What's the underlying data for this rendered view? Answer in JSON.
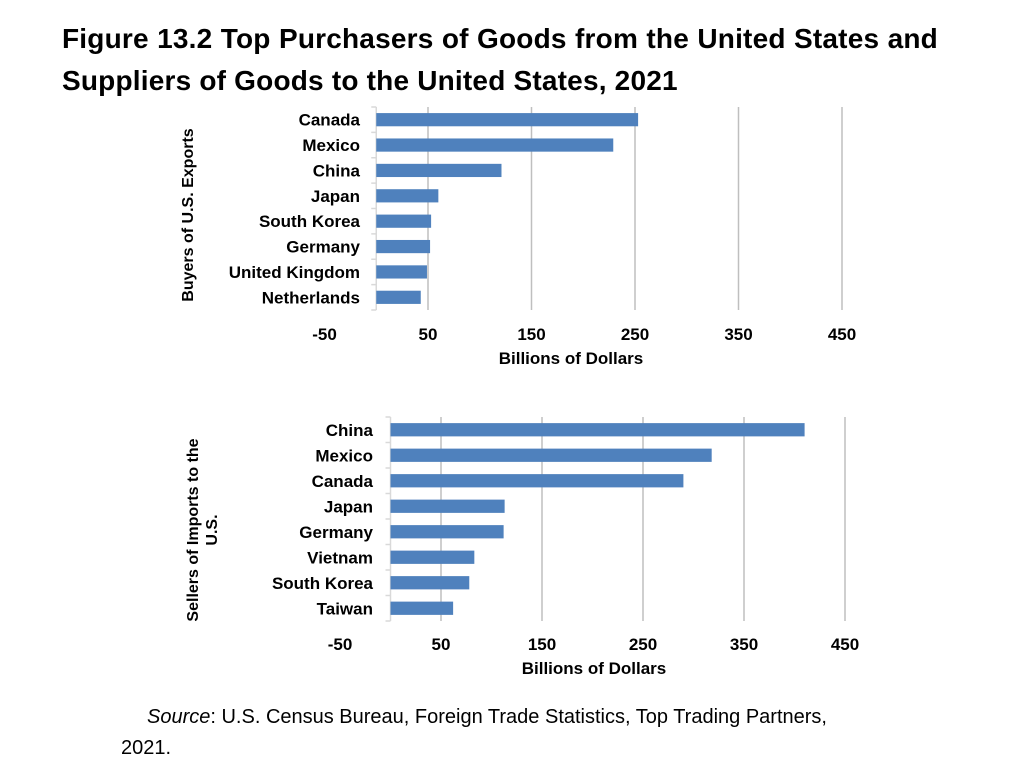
{
  "title": "Figure 13.2 Top Purchasers of Goods from the United States and Suppliers of Goods to the United States, 2021",
  "source": {
    "label": "Source",
    "text": ": U.S. Census Bureau, Foreign Trade Statistics, Top Trading Partners, 2021."
  },
  "colors": {
    "bar": "#4f81bd",
    "grid": "#bfbfbf",
    "axis": "#d9d9d9"
  },
  "chart_data": [
    {
      "type": "bar",
      "orientation": "horizontal",
      "ylabel": "Buyers of U.S. Exports",
      "xlabel": "Billions of Dollars",
      "categories": [
        "Canada",
        "Mexico",
        "China",
        "Japan",
        "South Korea",
        "Germany",
        "United Kingdom",
        "Netherlands"
      ],
      "values": [
        253,
        229,
        121,
        60,
        53,
        52,
        49,
        43
      ],
      "xlim": [
        -50,
        450
      ],
      "ticks": [
        -50,
        50,
        150,
        250,
        350,
        450
      ],
      "tick_labels": [
        "-50",
        "50",
        "150",
        "250",
        "350",
        "450"
      ],
      "grid": true,
      "legend": "none"
    },
    {
      "type": "bar",
      "orientation": "horizontal",
      "ylabel": "Sellers of Imports to the U.S.",
      "xlabel": "Billions of Dollars",
      "categories": [
        "China",
        "Mexico",
        "Canada",
        "Japan",
        "Germany",
        "Vietnam",
        "South Korea",
        "Taiwan"
      ],
      "values": [
        410,
        318,
        290,
        113,
        112,
        83,
        78,
        62
      ],
      "xlim": [
        -50,
        450
      ],
      "ticks": [
        -50,
        50,
        150,
        250,
        350,
        450
      ],
      "tick_labels": [
        "-50",
        "50",
        "150",
        "250",
        "350",
        "450"
      ],
      "grid": true,
      "legend": "none"
    }
  ]
}
